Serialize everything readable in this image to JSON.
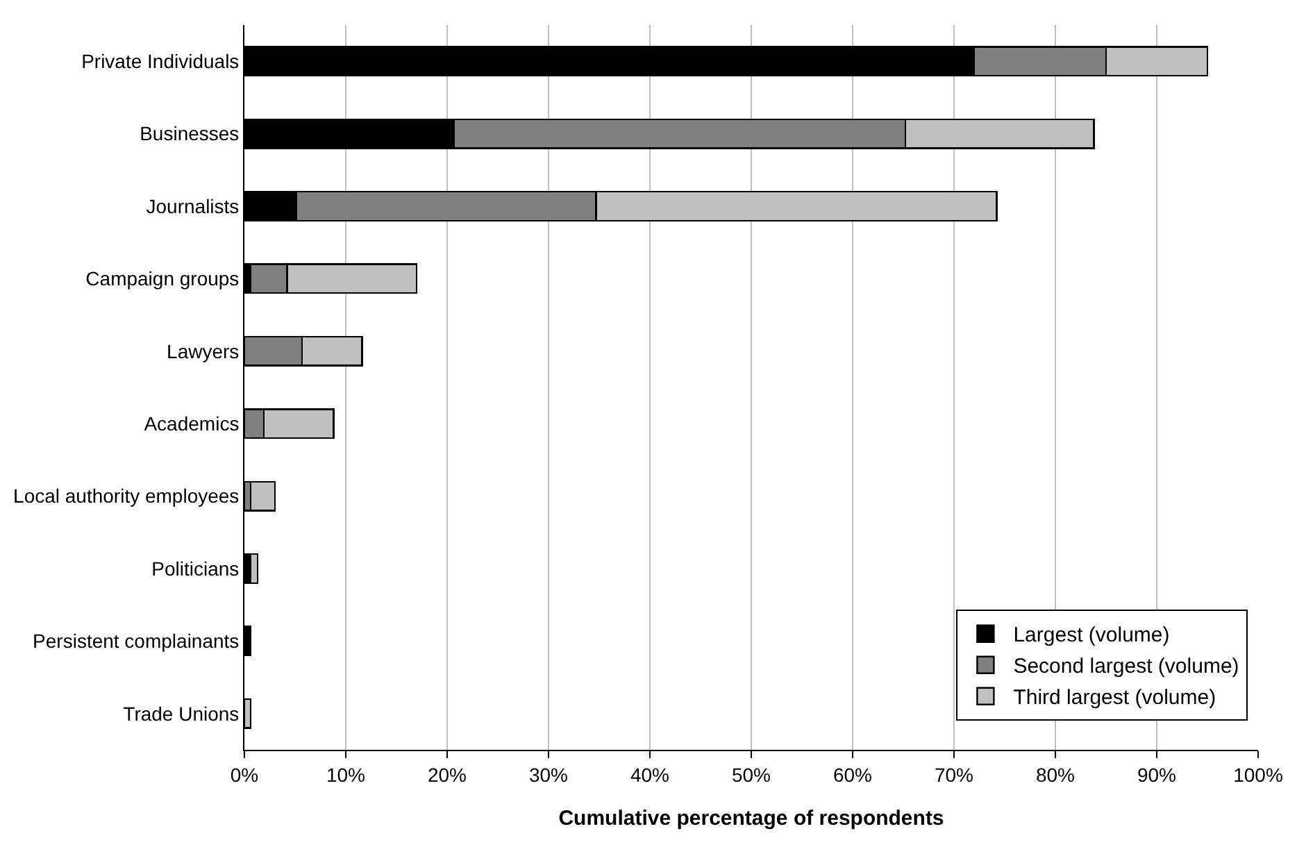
{
  "chart_data": {
    "type": "bar",
    "orientation": "horizontal",
    "stacked": true,
    "categories": [
      "Private Individuals",
      "Businesses",
      "Journalists",
      "Campaign groups",
      "Lawyers",
      "Academics",
      "Local authority employees",
      "Politicians",
      "Persistent complainants",
      "Trade Unions"
    ],
    "series": [
      {
        "name": "Largest (volume)",
        "color": "#000000",
        "values": [
          72,
          20.7,
          5.1,
          0.6,
          0,
          0,
          0,
          0.6,
          0.6,
          0
        ]
      },
      {
        "name": "Second largest (volume)",
        "color": "#808080",
        "values": [
          13,
          44.5,
          29.6,
          3.6,
          5.7,
          1.9,
          0.6,
          0,
          0,
          0
        ]
      },
      {
        "name": "Third largest (volume)",
        "color": "#c0c0c0",
        "values": [
          10,
          18.6,
          39.5,
          12.8,
          5.9,
          6.9,
          2.4,
          0.7,
          0,
          0.6
        ]
      }
    ],
    "xlabel": "Cumulative percentage of respondents",
    "xlim": [
      0,
      100
    ],
    "xticks": [
      {
        "value": 0,
        "label": "0%"
      },
      {
        "value": 10,
        "label": "10%"
      },
      {
        "value": 20,
        "label": "20%"
      },
      {
        "value": 30,
        "label": "30%"
      },
      {
        "value": 40,
        "label": "40%"
      },
      {
        "value": 50,
        "label": "50%"
      },
      {
        "value": 60,
        "label": "60%"
      },
      {
        "value": 70,
        "label": "70%"
      },
      {
        "value": 80,
        "label": "80%"
      },
      {
        "value": 90,
        "label": "90%"
      },
      {
        "value": 100,
        "label": "100%"
      }
    ],
    "grid": "x",
    "legend": "bottom right"
  }
}
